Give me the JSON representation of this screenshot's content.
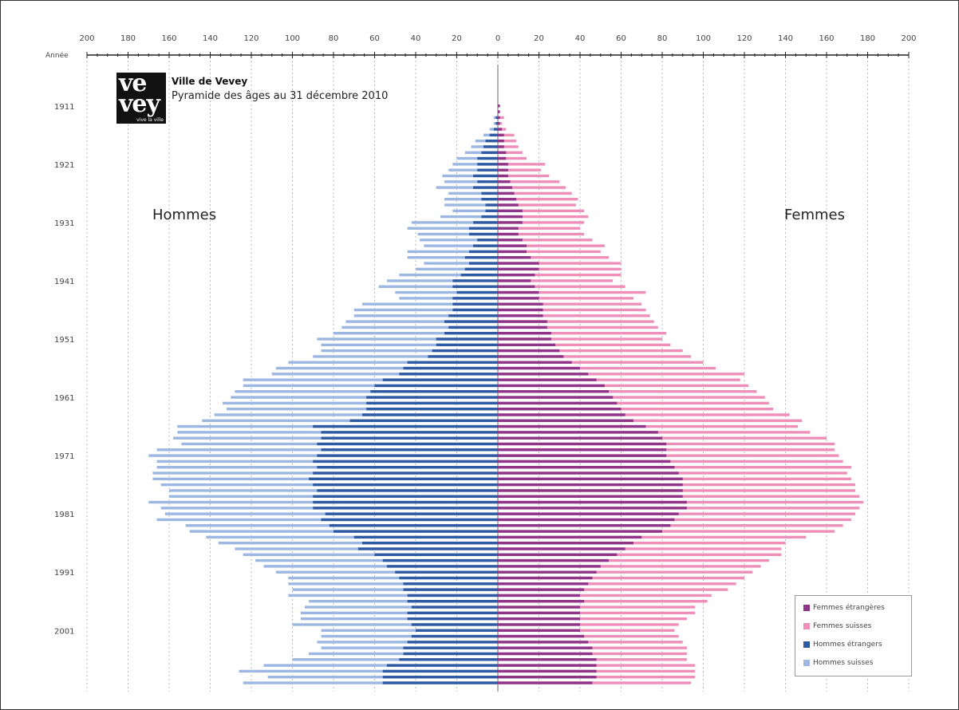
{
  "chart_title": "Ville de Vevey",
  "chart_subtitle": "Pyramide des âges au 31 décembre 2010",
  "logo": {
    "line1": "ve",
    "line2": "vey",
    "line3": "vive la ville"
  },
  "labels": {
    "men": "Hommes",
    "women": "Femmes"
  },
  "colors": {
    "femmes_etrangeres": "#8e3588",
    "femmes_suisses": "#ee8fba",
    "hommes_etrangers": "#2d5aa3",
    "hommes_suisses": "#9bb7e2"
  },
  "chart_data": {
    "type": "bar",
    "orientation": "horizontal-population-pyramid",
    "xlabel": "",
    "ylabel": "Année",
    "xlim": [
      -200,
      200
    ],
    "x_ticks": [
      200,
      180,
      160,
      140,
      120,
      100,
      80,
      60,
      40,
      20,
      0,
      20,
      40,
      60,
      80,
      100,
      120,
      140,
      160,
      180,
      200
    ],
    "y_tick_labels": [
      "1911",
      "1921",
      "1931",
      "1941",
      "1951",
      "1961",
      "1971",
      "1981",
      "1991",
      "2001"
    ],
    "legend": [
      "Femmes étrangères",
      "Femmes suisses",
      "Hommes étrangers",
      "Hommes suisses"
    ],
    "legend_position": "bottom-right",
    "grid": "vertical-dotted",
    "categories": [
      1910,
      1911,
      1912,
      1913,
      1914,
      1915,
      1916,
      1917,
      1918,
      1919,
      1920,
      1921,
      1922,
      1923,
      1924,
      1925,
      1926,
      1927,
      1928,
      1929,
      1930,
      1931,
      1932,
      1933,
      1934,
      1935,
      1936,
      1937,
      1938,
      1939,
      1940,
      1941,
      1942,
      1943,
      1944,
      1945,
      1946,
      1947,
      1948,
      1949,
      1950,
      1951,
      1952,
      1953,
      1954,
      1955,
      1956,
      1957,
      1958,
      1959,
      1960,
      1961,
      1962,
      1963,
      1964,
      1965,
      1966,
      1967,
      1968,
      1969,
      1970,
      1971,
      1972,
      1973,
      1974,
      1975,
      1976,
      1977,
      1978,
      1979,
      1980,
      1981,
      1982,
      1983,
      1984,
      1985,
      1986,
      1987,
      1988,
      1989,
      1990,
      1991,
      1992,
      1993,
      1994,
      1995,
      1996,
      1997,
      1998,
      1999,
      2000,
      2001,
      2002,
      2003,
      2004,
      2005,
      2006,
      2007,
      2008,
      2009,
      2010
    ],
    "series": [
      {
        "name": "Hommes suisses",
        "values": [
          0,
          0,
          0,
          1,
          1,
          2,
          3,
          5,
          6,
          8,
          10,
          12,
          14,
          15,
          16,
          18,
          16,
          18,
          20,
          16,
          20,
          30,
          30,
          25,
          28,
          24,
          30,
          28,
          22,
          24,
          30,
          32,
          36,
          30,
          26,
          44,
          48,
          46,
          48,
          52,
          54,
          58,
          56,
          54,
          56,
          58,
          62,
          62,
          68,
          64,
          66,
          66,
          70,
          68,
          72,
          72,
          66,
          70,
          72,
          66,
          80,
          82,
          76,
          78,
          78,
          76,
          74,
          72,
          70,
          80,
          74,
          78,
          80,
          70,
          70,
          72,
          70,
          60,
          64,
          62,
          60,
          58,
          54,
          56,
          54,
          58,
          48,
          52,
          52,
          52,
          58,
          46,
          44,
          44,
          40,
          46,
          52,
          60,
          70,
          56,
          68
        ]
      },
      {
        "name": "Hommes étrangers",
        "values": [
          0,
          0,
          0,
          1,
          1,
          2,
          4,
          6,
          7,
          8,
          10,
          10,
          10,
          12,
          10,
          12,
          8,
          8,
          6,
          6,
          8,
          12,
          14,
          14,
          10,
          12,
          14,
          16,
          14,
          16,
          18,
          22,
          22,
          20,
          22,
          22,
          22,
          24,
          26,
          24,
          26,
          30,
          30,
          32,
          34,
          44,
          46,
          48,
          56,
          60,
          62,
          64,
          64,
          64,
          66,
          72,
          90,
          86,
          86,
          88,
          86,
          88,
          90,
          88,
          90,
          92,
          90,
          88,
          90,
          90,
          90,
          84,
          86,
          82,
          80,
          70,
          66,
          68,
          60,
          56,
          54,
          50,
          48,
          46,
          46,
          44,
          44,
          42,
          44,
          44,
          42,
          40,
          42,
          44,
          46,
          46,
          48,
          54,
          56,
          56,
          56
        ]
      },
      {
        "name": "Femmes suisses",
        "values": [
          0,
          0,
          0,
          2,
          1,
          2,
          5,
          6,
          7,
          8,
          10,
          18,
          16,
          20,
          24,
          26,
          28,
          30,
          28,
          30,
          32,
          30,
          30,
          32,
          34,
          38,
          36,
          38,
          40,
          40,
          42,
          40,
          44,
          52,
          46,
          48,
          50,
          52,
          52,
          54,
          56,
          54,
          56,
          60,
          62,
          64,
          66,
          76,
          70,
          70,
          72,
          74,
          74,
          74,
          80,
          82,
          74,
          74,
          80,
          82,
          82,
          84,
          84,
          86,
          82,
          82,
          84,
          84,
          86,
          86,
          84,
          86,
          86,
          84,
          84,
          80,
          74,
          76,
          80,
          78,
          78,
          76,
          74,
          72,
          70,
          64,
          60,
          56,
          56,
          52,
          48,
          46,
          46,
          46,
          46,
          46,
          44,
          48,
          48,
          48,
          48
        ]
      },
      {
        "name": "Femmes étrangères",
        "values": [
          0,
          1,
          1,
          1,
          1,
          2,
          3,
          3,
          3,
          4,
          4,
          5,
          5,
          5,
          6,
          7,
          8,
          9,
          10,
          12,
          12,
          12,
          10,
          10,
          12,
          14,
          14,
          16,
          20,
          20,
          18,
          16,
          18,
          20,
          20,
          22,
          22,
          22,
          24,
          24,
          26,
          26,
          28,
          30,
          32,
          36,
          40,
          44,
          48,
          52,
          54,
          56,
          58,
          60,
          62,
          66,
          72,
          78,
          80,
          82,
          82,
          82,
          84,
          86,
          88,
          90,
          90,
          90,
          90,
          92,
          92,
          88,
          86,
          84,
          80,
          70,
          66,
          62,
          58,
          54,
          50,
          48,
          46,
          44,
          42,
          40,
          42,
          40,
          40,
          40,
          40,
          40,
          42,
          44,
          46,
          46,
          48,
          48,
          48,
          48,
          46
        ]
      }
    ]
  }
}
